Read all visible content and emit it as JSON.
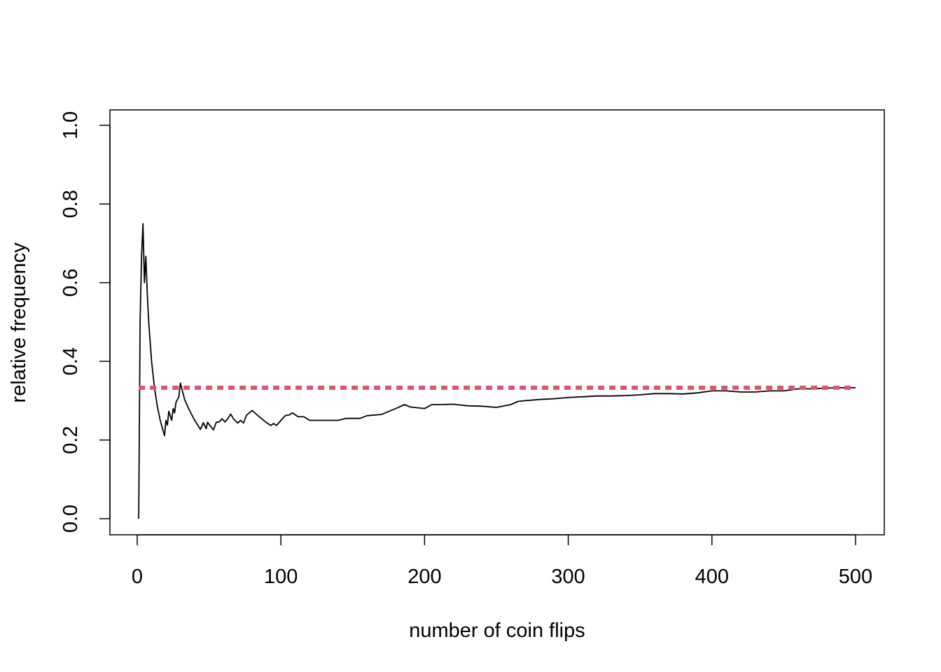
{
  "chart_data": {
    "type": "line",
    "xlabel": "number of coin flips",
    "ylabel": "relative frequency",
    "xlim": [
      1,
      500
    ],
    "ylim": [
      0,
      1
    ],
    "x_ticks": [
      0,
      100,
      200,
      300,
      400,
      500
    ],
    "x_tick_labels": [
      "0",
      "100",
      "200",
      "300",
      "400",
      "500"
    ],
    "y_ticks": [
      0.0,
      0.2,
      0.4,
      0.6,
      0.8,
      1.0
    ],
    "y_tick_labels": [
      "0.0",
      "0.2",
      "0.4",
      "0.6",
      "0.8",
      "1.0"
    ],
    "grid": false,
    "legend": "none",
    "series": [
      {
        "style": "solid",
        "color": "#000000",
        "x": [
          1,
          2,
          3,
          4,
          5,
          6,
          7,
          8,
          10,
          12,
          14,
          16,
          19,
          20,
          21,
          22,
          23,
          24,
          25,
          26,
          27,
          29,
          30,
          33,
          36,
          40,
          44,
          46,
          48,
          49,
          51,
          53,
          55,
          57,
          59,
          61,
          63,
          65,
          67,
          70,
          72,
          74,
          76,
          78,
          80,
          85,
          90,
          93,
          95,
          97,
          100,
          103,
          106,
          108,
          112,
          116,
          120,
          124,
          128,
          132,
          136,
          140,
          145,
          150,
          155,
          160,
          170,
          180,
          186,
          190,
          195,
          200,
          205,
          210,
          220,
          230,
          240,
          250,
          260,
          265,
          270,
          280,
          290,
          300,
          310,
          320,
          330,
          340,
          350,
          360,
          370,
          380,
          390,
          400,
          410,
          420,
          430,
          440,
          450,
          460,
          470,
          480,
          490,
          500
        ],
        "y": [
          0.0,
          0.5,
          0.667,
          0.75,
          0.6,
          0.667,
          0.571,
          0.5,
          0.4,
          0.333,
          0.286,
          0.25,
          0.211,
          0.25,
          0.238,
          0.273,
          0.261,
          0.25,
          0.28,
          0.269,
          0.296,
          0.31,
          0.345,
          0.303,
          0.278,
          0.25,
          0.227,
          0.244,
          0.229,
          0.245,
          0.235,
          0.226,
          0.245,
          0.246,
          0.254,
          0.246,
          0.254,
          0.266,
          0.254,
          0.243,
          0.25,
          0.243,
          0.263,
          0.269,
          0.275,
          0.259,
          0.244,
          0.237,
          0.242,
          0.237,
          0.25,
          0.262,
          0.264,
          0.269,
          0.259,
          0.259,
          0.25,
          0.25,
          0.25,
          0.25,
          0.25,
          0.25,
          0.255,
          0.255,
          0.255,
          0.262,
          0.265,
          0.28,
          0.29,
          0.284,
          0.282,
          0.28,
          0.29,
          0.29,
          0.291,
          0.287,
          0.286,
          0.283,
          0.29,
          0.298,
          0.3,
          0.303,
          0.305,
          0.308,
          0.31,
          0.312,
          0.312,
          0.313,
          0.315,
          0.318,
          0.318,
          0.317,
          0.32,
          0.325,
          0.325,
          0.322,
          0.322,
          0.325,
          0.325,
          0.33,
          0.33,
          0.332,
          0.333,
          0.333
        ]
      },
      {
        "style": "dotted",
        "color": "#DF536B",
        "x": [
          1,
          500
        ],
        "y": [
          0.333,
          0.333
        ]
      }
    ]
  }
}
